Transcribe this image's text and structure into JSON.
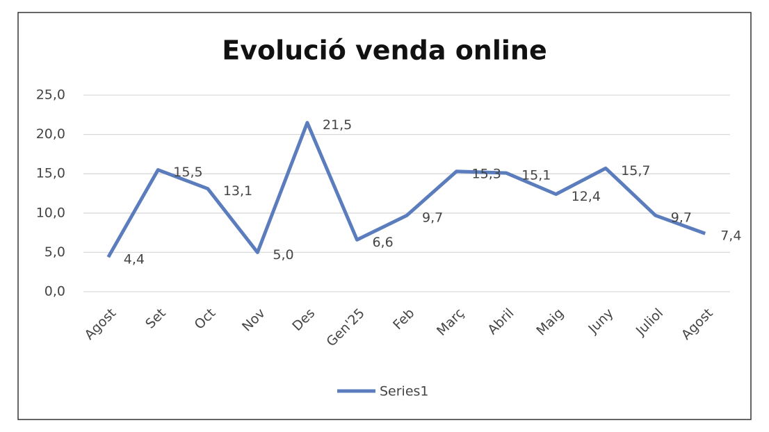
{
  "chart_data": {
    "type": "line",
    "title": "Evolució venda online",
    "categories": [
      "Agost",
      "Set",
      "Oct",
      "Nov",
      "Des",
      "Gen'25",
      "Feb",
      "Març",
      "Abril",
      "Maig",
      "Juny",
      "Juliol",
      "Agost"
    ],
    "series": [
      {
        "name": "Series1",
        "color": "#5b7dbd",
        "values": [
          4.4,
          15.5,
          13.1,
          5.0,
          21.5,
          6.6,
          9.7,
          15.3,
          15.1,
          12.4,
          15.7,
          9.7,
          7.4
        ],
        "value_labels": [
          "4,4",
          "15,5",
          "13,1",
          "5,0",
          "21,5",
          "6,6",
          "9,7",
          "15,3",
          "15,1",
          "12,4",
          "15,7",
          "9,7",
          "7,4"
        ]
      }
    ],
    "ylim": [
      0,
      25
    ],
    "yticks": [
      {
        "value": 0,
        "label": "0,0"
      },
      {
        "value": 5,
        "label": "5,0"
      },
      {
        "value": 10,
        "label": "10,0"
      },
      {
        "value": 15,
        "label": "15,0"
      },
      {
        "value": 20,
        "label": "20,0"
      },
      {
        "value": 25,
        "label": "25,0"
      }
    ],
    "grid": true,
    "legend": "bottom"
  }
}
